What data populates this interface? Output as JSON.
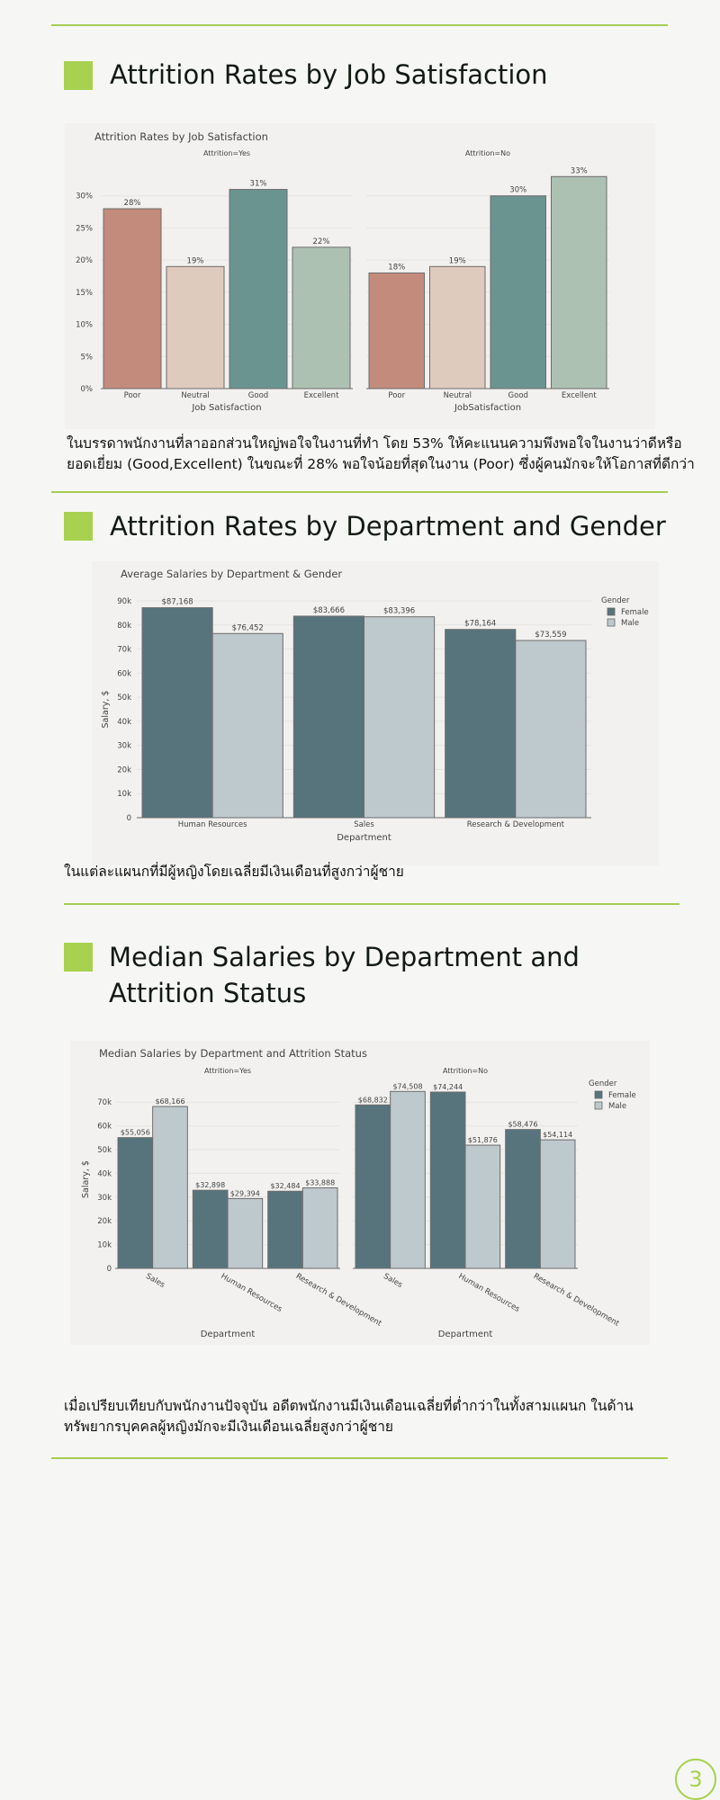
{
  "section1": {
    "heading": "Attrition Rates by Job Satisfaction",
    "paragraph": "ในบรรดาพนักงานที่ลาออกส่วนใหญ่พอใจในงานที่ทำ โดย 53% ให้คะแนนความพึงพอใจในงานว่าดีหรือยอดเยี่ยม (Good,Excellent) ในขณะที่ 28% พอใจน้อยที่สุดในงาน (Poor) ซึ่งผู้คนมักจะให้โอกาสที่ดีกว่า"
  },
  "section2": {
    "heading": "Attrition Rates by Department and Gender",
    "paragraph": "ในแต่ละแผนกที่มีผู้หญิงโดยเฉลี่ยมีเงินเดือนที่สูงกว่าผู้ชาย"
  },
  "section3": {
    "heading": "Median Salaries by Department and Attrition Status",
    "paragraph": "เมื่อเปรียบเทียบกับพนักงานปัจจุบัน อดีตพนักงานมีเงินเดือนเฉลี่ยที่ต่ำกว่าในทั้งสามแผนก ในด้านทรัพยากรบุคคลผู้หญิงมักจะมีเงินเดือนเฉลี่ยสูงกว่าผู้ชาย"
  },
  "page_number": "3",
  "chart_data": [
    {
      "type": "bar",
      "title": "Attrition Rates by Job Satisfaction",
      "xlabel": "Job Satisfaction",
      "ylabel": "",
      "ylim": [
        0,
        35
      ],
      "yticks": [
        "0%",
        "5%",
        "10%",
        "15%",
        "20%",
        "25%",
        "30%"
      ],
      "categories": [
        "Poor",
        "Neutral",
        "Good",
        "Excellent"
      ],
      "colors": [
        "#c28b7c",
        "#dfcabe",
        "#6a9490",
        "#adc1b2"
      ],
      "grid": true,
      "legend": "none",
      "panels": [
        {
          "name": "Attrition=Yes",
          "xlabel": "Job Satisfaction",
          "values": [
            28,
            19,
            31,
            22
          ],
          "labels": [
            "28%",
            "19%",
            "31%",
            "22%"
          ]
        },
        {
          "name": "Attrition=No",
          "xlabel": "JobSatisfaction",
          "values": [
            18,
            19,
            30,
            33
          ],
          "labels": [
            "18%",
            "19%",
            "30%",
            "33%"
          ]
        }
      ]
    },
    {
      "type": "bar",
      "title": "Average Salaries by Department & Gender",
      "xlabel": "Department",
      "ylabel": "Salary, $",
      "ylim": [
        0,
        90000
      ],
      "yticks": [
        "0",
        "10k",
        "20k",
        "30k",
        "40k",
        "50k",
        "60k",
        "70k",
        "80k",
        "90k"
      ],
      "categories": [
        "Human Resources",
        "Sales",
        "Research & Development"
      ],
      "legend_title": "Gender",
      "legend": "top-right",
      "grid": true,
      "series": [
        {
          "name": "Female",
          "color": "#57747d",
          "values": [
            87168,
            83666,
            78164
          ],
          "labels": [
            "$87,168",
            "$83,666",
            "$78,164"
          ]
        },
        {
          "name": "Male",
          "color": "#bec9ce",
          "values": [
            76452,
            83396,
            73559
          ],
          "labels": [
            "$76,452",
            "$83,396",
            "$73,559"
          ]
        }
      ]
    },
    {
      "type": "bar",
      "title": "Median Salaries by Department and Attrition Status",
      "xlabel": "Department",
      "ylabel": "Salary, $",
      "ylim": [
        0,
        75000
      ],
      "yticks": [
        "0",
        "10k",
        "20k",
        "30k",
        "40k",
        "50k",
        "60k",
        "70k"
      ],
      "legend_title": "Gender",
      "legend": "top-right",
      "grid": true,
      "series_names": [
        "Female",
        "Male"
      ],
      "series_colors": [
        "#57747d",
        "#bec9ce"
      ],
      "panels": [
        {
          "name": "Attrition=Yes",
          "categories": [
            "Sales",
            "Human Resources",
            "Research & Development"
          ],
          "female": [
            55056,
            32898,
            32484
          ],
          "female_labels": [
            "$55,056",
            "$32,898",
            "$32,484"
          ],
          "male": [
            68166,
            29394,
            33888
          ],
          "male_labels": [
            "$68,166",
            "$29,394",
            "$33,888"
          ]
        },
        {
          "name": "Attrition=No",
          "categories": [
            "Sales",
            "Human Resources",
            "Research & Development"
          ],
          "female": [
            68832,
            74244,
            58476
          ],
          "female_labels": [
            "$68,832",
            "$74,244",
            "$58,476"
          ],
          "male": [
            74508,
            51876,
            54114
          ],
          "male_labels": [
            "$74,508",
            "$51,876",
            "$54,114"
          ]
        }
      ]
    }
  ]
}
